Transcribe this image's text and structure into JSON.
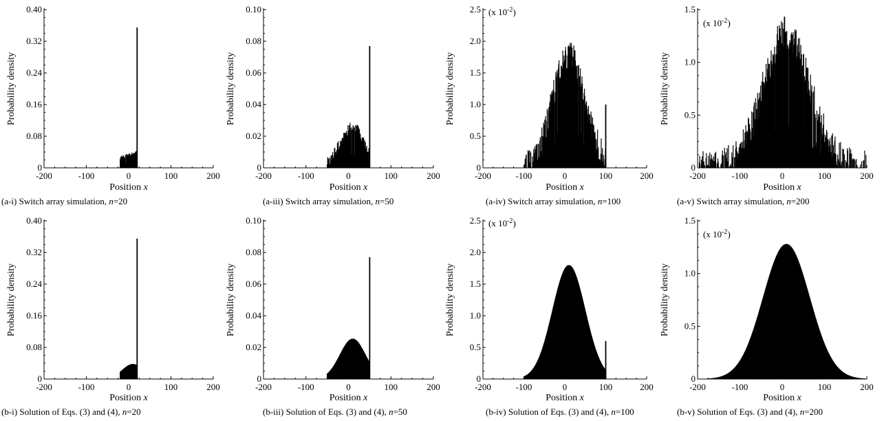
{
  "xlabel_text": "Position ",
  "xlabel_var": "x",
  "ylabel": "Probability density",
  "scale_prefix": "(x 10",
  "scale_exp": "-2",
  "scale_suffix": ")",
  "chart_data": [
    {
      "id": "a-i",
      "type": "bar",
      "caption": "(a-i) Switch array simulation, ",
      "n_label": "n",
      "n_value": "=20",
      "xlim": [
        -200,
        200
      ],
      "xticks": [
        "-200",
        "-100",
        "0",
        "100",
        "200"
      ],
      "ylim": [
        0,
        0.4
      ],
      "yticks": [
        "0",
        "0.08",
        "0.16",
        "0.24",
        "0.32",
        "0.40"
      ],
      "scale_note": false,
      "n": 20,
      "spike": 0.355,
      "curve": {
        "kind": "flat",
        "start": 0.025,
        "end": 0.038
      },
      "noise": 0.005
    },
    {
      "id": "a-iii",
      "type": "bar",
      "caption": "(a-iii) Switch array simulation, ",
      "n_label": "n",
      "n_value": "=50",
      "xlim": [
        -200,
        200
      ],
      "xticks": [
        "-200",
        "-100",
        "0",
        "100",
        "200"
      ],
      "ylim": [
        0,
        0.1
      ],
      "yticks": [
        "0",
        "0.02",
        "0.04",
        "0.06",
        "0.08",
        "0.10"
      ],
      "scale_note": false,
      "n": 50,
      "spike": 0.077,
      "curve": {
        "kind": "gauss",
        "peak": 0.0255,
        "center": 10,
        "sigma": 30
      },
      "noise": 0.0035
    },
    {
      "id": "a-iv",
      "type": "bar",
      "caption": "(a-iv) Switch array simulation, ",
      "n_label": "n",
      "n_value": "=100",
      "xlim": [
        -200,
        200
      ],
      "xticks": [
        "-200",
        "-100",
        "0",
        "100",
        "200"
      ],
      "ylim": [
        0,
        2.5
      ],
      "yticks": [
        "0",
        "0.5",
        "1.0",
        "1.5",
        "2.0",
        "2.5"
      ],
      "scale_note": true,
      "n": 100,
      "spike": 1.0,
      "curve": {
        "kind": "gauss",
        "peak": 1.8,
        "center": 10,
        "sigma": 40
      },
      "noise": 0.22
    },
    {
      "id": "a-v",
      "type": "bar",
      "caption": "(a-v) Switch array simulation, ",
      "n_label": "n",
      "n_value": "=200",
      "xlim": [
        -200,
        200
      ],
      "xticks": [
        "-200",
        "-100",
        "0",
        "100",
        "200"
      ],
      "ylim": [
        0,
        1.5
      ],
      "yticks": [
        "0",
        "0.5",
        "1.0",
        "1.5"
      ],
      "scale_note": true,
      "n": 200,
      "spike": 0,
      "curve": {
        "kind": "gauss",
        "peak": 1.28,
        "center": 10,
        "sigma": 55
      },
      "noise": 0.16
    },
    {
      "id": "b-i",
      "type": "bar",
      "caption": "(b-i) Solution of Eqs. (3) and (4), ",
      "n_label": "n",
      "n_value": "=20",
      "xlim": [
        -200,
        200
      ],
      "xticks": [
        "-200",
        "-100",
        "0",
        "100",
        "200"
      ],
      "ylim": [
        0,
        0.4
      ],
      "yticks": [
        "0",
        "0.08",
        "0.16",
        "0.24",
        "0.32",
        "0.40"
      ],
      "scale_note": false,
      "n": 20,
      "spike": 0.355,
      "curve": {
        "kind": "gauss",
        "peak": 0.038,
        "center": 10,
        "sigma": 25
      },
      "noise": 0
    },
    {
      "id": "b-iii",
      "type": "bar",
      "caption": "(b-iii) Solution of Eqs. (3) and (4), ",
      "n_label": "n",
      "n_value": "=50",
      "xlim": [
        -200,
        200
      ],
      "xticks": [
        "-200",
        "-100",
        "0",
        "100",
        "200"
      ],
      "ylim": [
        0,
        0.1
      ],
      "yticks": [
        "0",
        "0.02",
        "0.04",
        "0.06",
        "0.08",
        "0.10"
      ],
      "scale_note": false,
      "n": 50,
      "spike": 0.077,
      "curve": {
        "kind": "gauss",
        "peak": 0.0255,
        "center": 10,
        "sigma": 30
      },
      "noise": 0
    },
    {
      "id": "b-iv",
      "type": "bar",
      "caption": "(b-iv) Solution of Eqs. (3) and (4), ",
      "n_label": "n",
      "n_value": "=100",
      "xlim": [
        -200,
        200
      ],
      "xticks": [
        "-200",
        "-100",
        "0",
        "100",
        "200"
      ],
      "ylim": [
        0,
        2.5
      ],
      "yticks": [
        "0",
        "0.5",
        "1.0",
        "1.5",
        "2.0",
        "2.5"
      ],
      "scale_note": true,
      "n": 100,
      "spike": 0.6,
      "curve": {
        "kind": "gauss",
        "peak": 1.8,
        "center": 10,
        "sigma": 40
      },
      "noise": 0
    },
    {
      "id": "b-v",
      "type": "bar",
      "caption": "(b-v) Solution of Eqs. (3) and (4), ",
      "n_label": "n",
      "n_value": "=200",
      "xlim": [
        -200,
        200
      ],
      "xticks": [
        "-200",
        "-100",
        "0",
        "100",
        "200"
      ],
      "ylim": [
        0,
        1.5
      ],
      "yticks": [
        "0",
        "0.5",
        "1.0",
        "1.5"
      ],
      "scale_note": true,
      "n": 200,
      "spike": 0,
      "curve": {
        "kind": "gauss",
        "peak": 1.28,
        "center": 10,
        "sigma": 55
      },
      "noise": 0
    }
  ]
}
